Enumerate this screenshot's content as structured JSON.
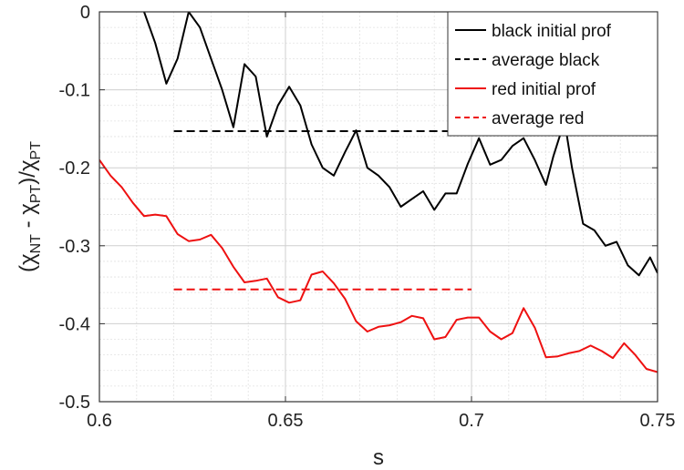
{
  "chart_data": {
    "type": "line",
    "xlabel": "s",
    "ylabel": "(χNT - χPT)/χPT",
    "ylabel_parts": {
      "open": "(χ",
      "sub1": "NT",
      "minus": " - χ",
      "sub2": "PT",
      "close": ")/χ",
      "sub3": "PT"
    },
    "xlim": [
      0.6,
      0.75
    ],
    "ylim": [
      -0.5,
      0
    ],
    "xticks": [
      0.6,
      0.65,
      0.7,
      0.75
    ],
    "xtick_labels": [
      "0.6",
      "0.65",
      "0.7",
      "0.75"
    ],
    "yticks": [
      0,
      -0.1,
      -0.2,
      -0.3,
      -0.4,
      -0.5
    ],
    "ytick_labels": [
      "0",
      "-0.1",
      "-0.2",
      "-0.3",
      "-0.4",
      "-0.5"
    ],
    "grid": true,
    "legend_position": "top-right",
    "series": [
      {
        "name": "black initial prof",
        "color": "#000000",
        "style": "solid",
        "x": [
          0.612,
          0.615,
          0.618,
          0.621,
          0.624,
          0.627,
          0.63,
          0.633,
          0.636,
          0.639,
          0.642,
          0.645,
          0.648,
          0.651,
          0.654,
          0.657,
          0.66,
          0.663,
          0.666,
          0.669,
          0.672,
          0.675,
          0.678,
          0.681,
          0.684,
          0.687,
          0.69,
          0.693,
          0.696,
          0.699,
          0.702,
          0.705,
          0.708,
          0.711,
          0.714,
          0.717,
          0.72,
          0.722,
          0.725,
          0.727,
          0.73,
          0.733,
          0.736,
          0.739,
          0.742,
          0.745,
          0.748,
          0.75
        ],
        "y": [
          0.0,
          -0.04,
          -0.092,
          -0.06,
          0.0,
          -0.02,
          -0.06,
          -0.1,
          -0.148,
          -0.067,
          -0.083,
          -0.16,
          -0.12,
          -0.096,
          -0.12,
          -0.17,
          -0.2,
          -0.21,
          -0.18,
          -0.152,
          -0.2,
          -0.21,
          -0.225,
          -0.25,
          -0.24,
          -0.23,
          -0.254,
          -0.233,
          -0.233,
          -0.195,
          -0.162,
          -0.196,
          -0.19,
          -0.172,
          -0.162,
          -0.19,
          -0.222,
          -0.185,
          -0.14,
          -0.2,
          -0.272,
          -0.28,
          -0.3,
          -0.295,
          -0.325,
          -0.338,
          -0.315,
          -0.335
        ]
      },
      {
        "name": "average black",
        "color": "#000000",
        "style": "dashed",
        "x": [
          0.62,
          0.72
        ],
        "y": [
          -0.153,
          -0.153
        ]
      },
      {
        "name": "red initial prof",
        "color": "#ee1111",
        "style": "solid",
        "x": [
          0.6,
          0.603,
          0.606,
          0.609,
          0.612,
          0.615,
          0.618,
          0.621,
          0.624,
          0.627,
          0.63,
          0.633,
          0.636,
          0.639,
          0.642,
          0.645,
          0.648,
          0.651,
          0.654,
          0.657,
          0.66,
          0.663,
          0.666,
          0.669,
          0.672,
          0.675,
          0.678,
          0.681,
          0.684,
          0.687,
          0.69,
          0.693,
          0.696,
          0.699,
          0.702,
          0.705,
          0.708,
          0.711,
          0.714,
          0.717,
          0.72,
          0.723,
          0.726,
          0.729,
          0.732,
          0.735,
          0.738,
          0.741,
          0.744,
          0.747,
          0.75
        ],
        "y": [
          -0.19,
          -0.21,
          -0.225,
          -0.245,
          -0.262,
          -0.26,
          -0.262,
          -0.285,
          -0.294,
          -0.292,
          -0.286,
          -0.303,
          -0.327,
          -0.347,
          -0.345,
          -0.342,
          -0.366,
          -0.373,
          -0.37,
          -0.337,
          -0.333,
          -0.348,
          -0.368,
          -0.397,
          -0.41,
          -0.404,
          -0.402,
          -0.398,
          -0.39,
          -0.393,
          -0.42,
          -0.417,
          -0.395,
          -0.392,
          -0.392,
          -0.41,
          -0.42,
          -0.412,
          -0.38,
          -0.405,
          -0.443,
          -0.442,
          -0.438,
          -0.435,
          -0.428,
          -0.435,
          -0.444,
          -0.425,
          -0.44,
          -0.458,
          -0.462
        ]
      },
      {
        "name": "average red",
        "color": "#ee1111",
        "style": "dashed",
        "x": [
          0.62,
          0.7
        ],
        "y": [
          -0.356,
          -0.356
        ]
      }
    ]
  }
}
